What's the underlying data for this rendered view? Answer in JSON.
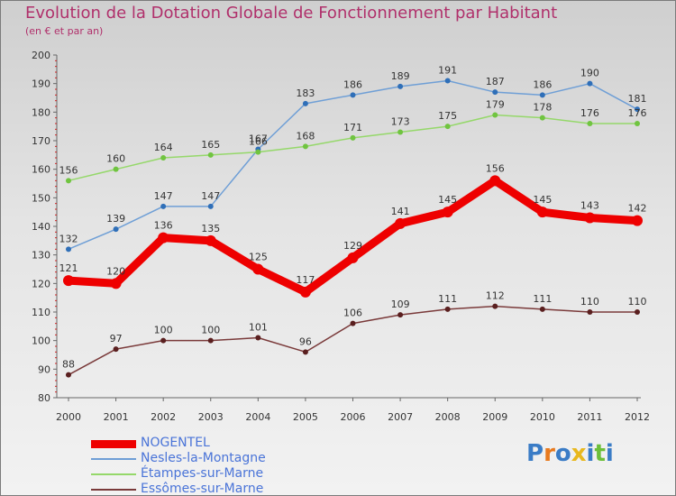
{
  "header": {
    "title": "Evolution de la Dotation Globale de Fonctionnement par Habitant",
    "subtitle": "(en € et par an)"
  },
  "chart_data": {
    "type": "line",
    "title": "Evolution de la Dotation Globale de Fonctionnement par Habitant",
    "subtitle": "(en € et par an)",
    "xlabel": "",
    "ylabel": "",
    "ylim": [
      80,
      200
    ],
    "yticks": [
      80,
      90,
      100,
      110,
      120,
      130,
      140,
      150,
      160,
      170,
      180,
      190,
      200
    ],
    "grid": false,
    "x": [
      "2000",
      "2001",
      "2002",
      "2003",
      "2004",
      "2005",
      "2006",
      "2007",
      "2008",
      "2009",
      "2010",
      "2011",
      "2012"
    ],
    "series": [
      {
        "name": "NOGENTEL",
        "color": "#ee0000",
        "emphasis": true,
        "values": [
          121,
          120,
          136,
          135,
          125,
          117,
          129,
          141,
          145,
          156,
          145,
          143,
          142
        ]
      },
      {
        "name": "Nesles-la-Montagne",
        "color": "#6f9fd6",
        "point_color": "#2f6fb8",
        "values": [
          132,
          139,
          147,
          147,
          167,
          183,
          186,
          189,
          191,
          187,
          186,
          190,
          181
        ]
      },
      {
        "name": "Étampes-sur-Marne",
        "color": "#95d86a",
        "point_color": "#70c440",
        "values": [
          156,
          160,
          164,
          165,
          166,
          168,
          171,
          173,
          175,
          179,
          178,
          176,
          176
        ]
      },
      {
        "name": "Essômes-sur-Marne",
        "color": "#7a3a3a",
        "point_color": "#5a1f1f",
        "values": [
          88,
          97,
          100,
          100,
          101,
          96,
          106,
          109,
          111,
          112,
          111,
          110,
          110
        ]
      }
    ],
    "legend_position": "bottom-left"
  },
  "logo": {
    "text": "Proxiti"
  }
}
